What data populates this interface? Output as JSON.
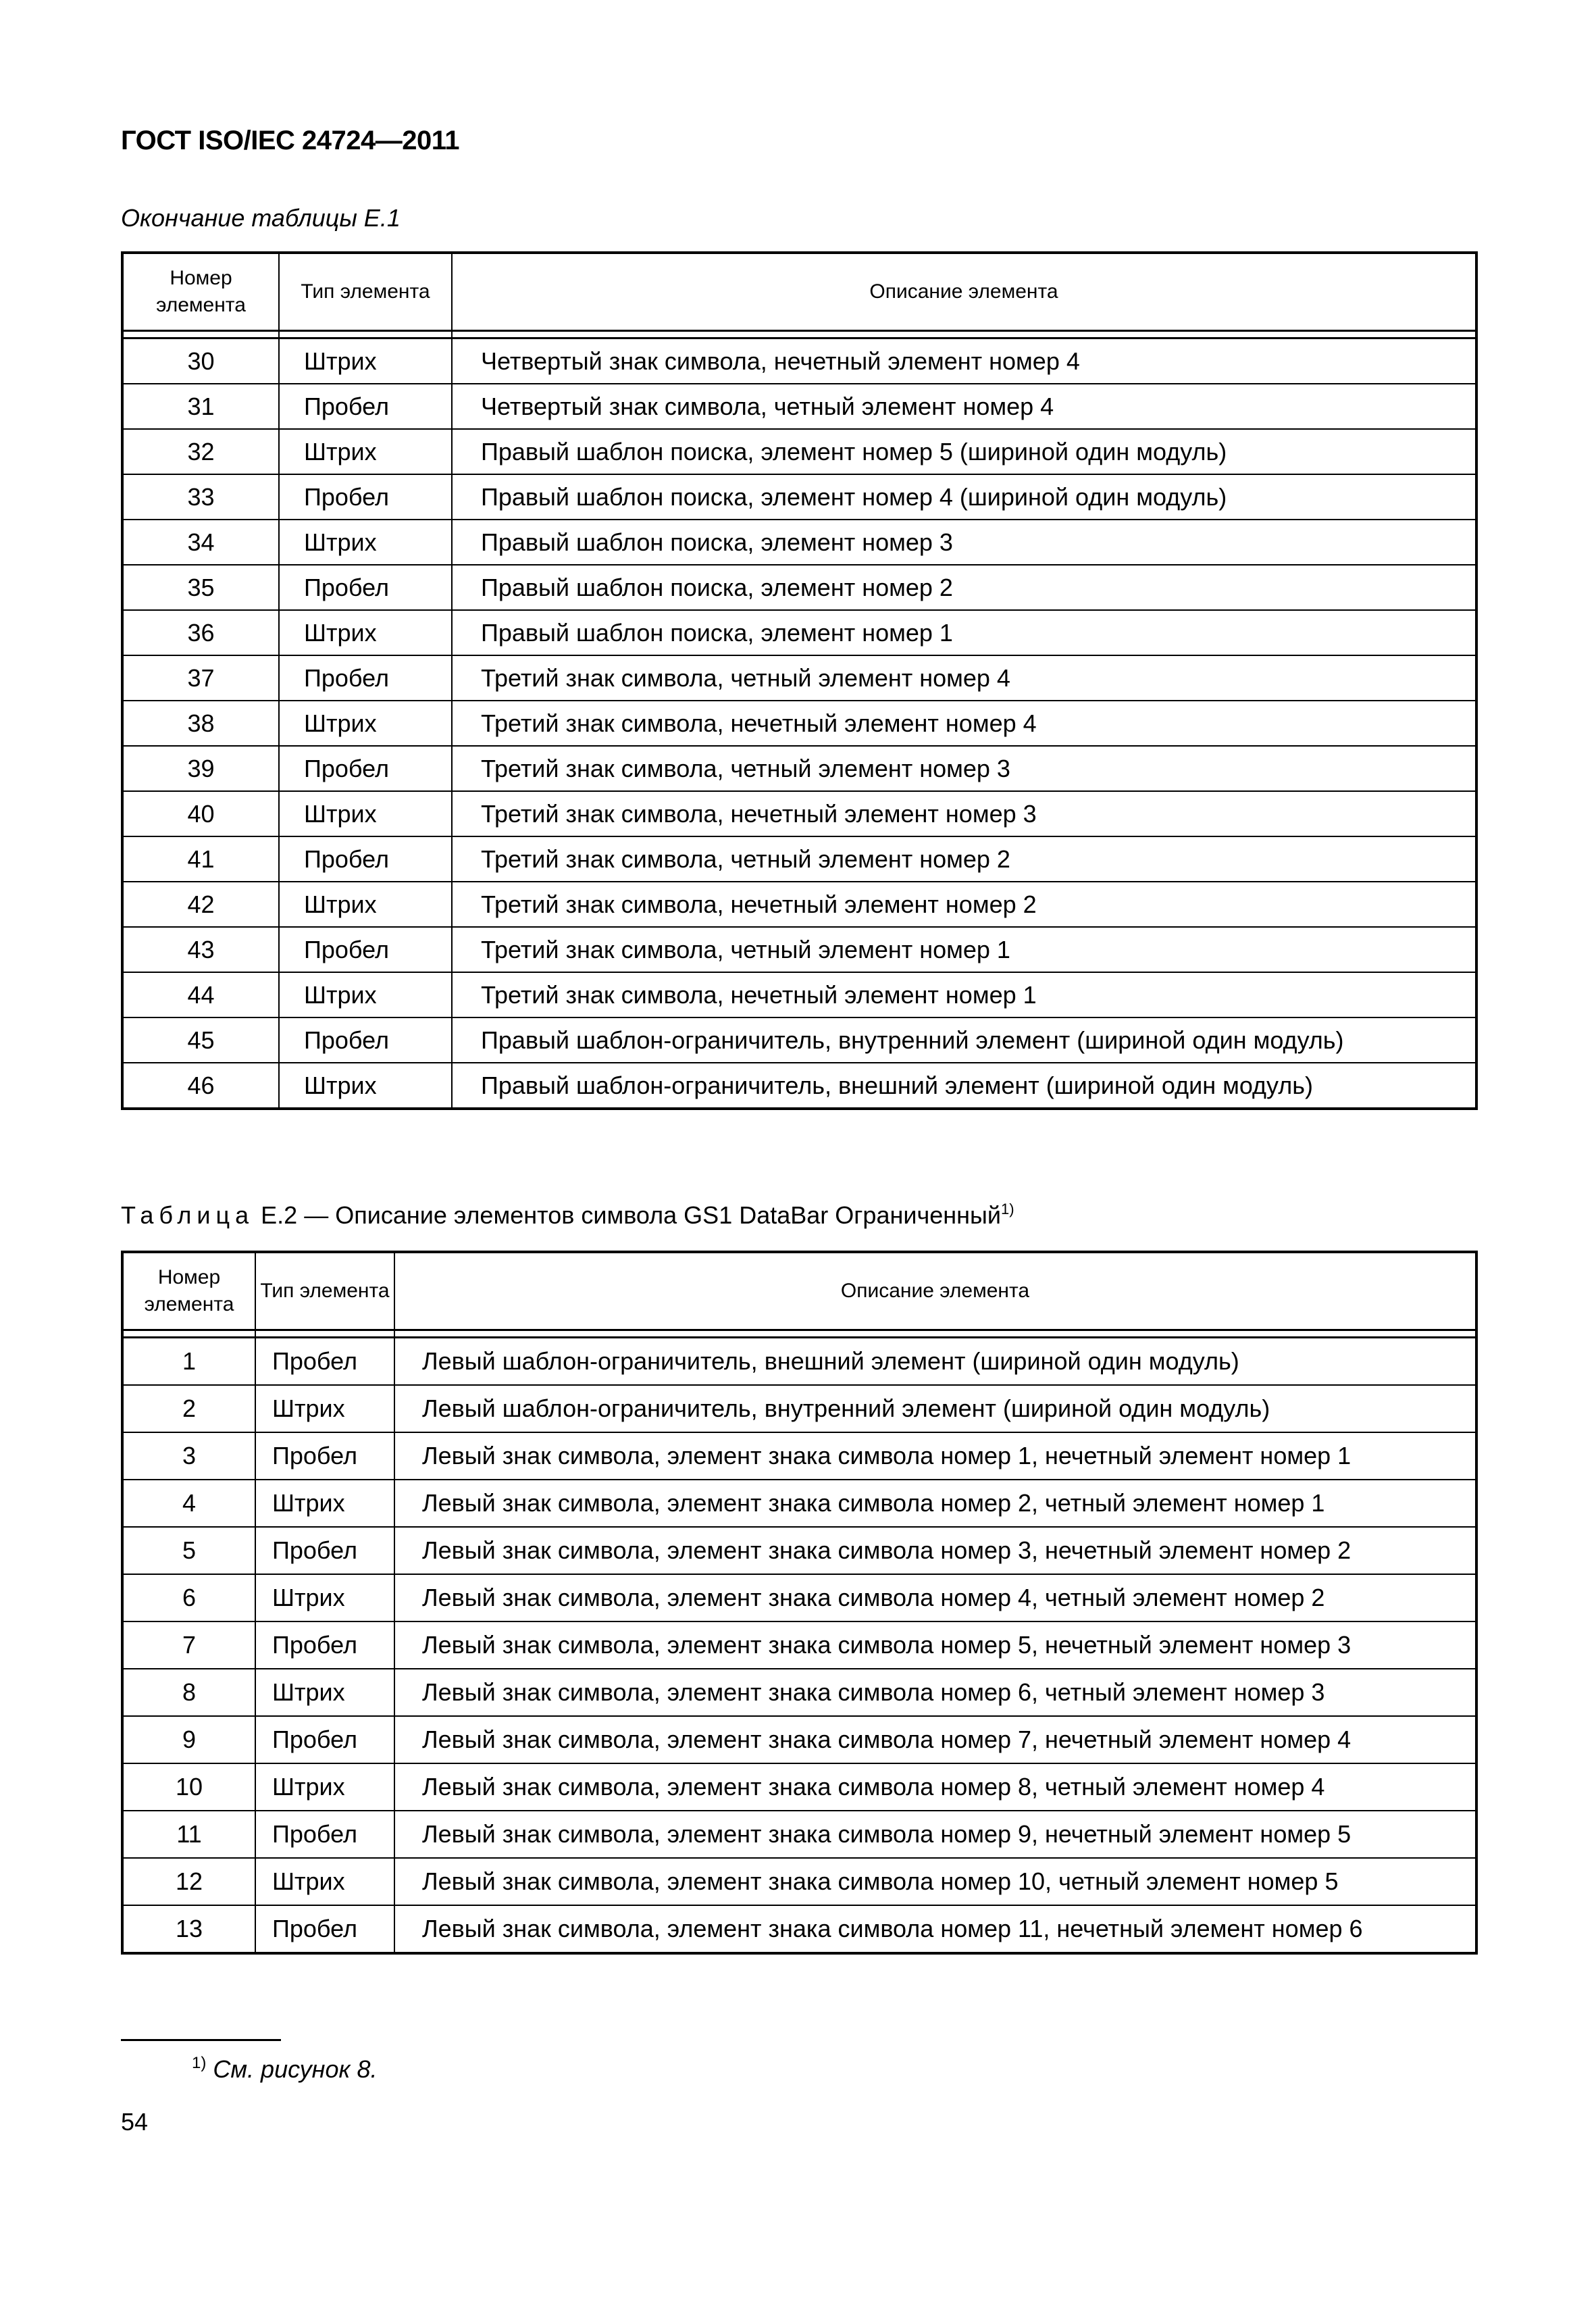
{
  "header": {
    "title": "ГОСТ ISO/IEC 24724—2011"
  },
  "table1": {
    "caption": "Окончание таблицы Е.1",
    "columns": [
      "Номер элемента",
      "Тип элемента",
      "Описание элемента"
    ],
    "rows": [
      [
        "30",
        "Штрих",
        "Четвертый знак символа, нечетный элемент номер 4"
      ],
      [
        "31",
        "Пробел",
        "Четвертый знак символа, четный элемент номер 4"
      ],
      [
        "32",
        "Штрих",
        "Правый шаблон поиска, элемент номер 5 (шириной один модуль)"
      ],
      [
        "33",
        "Пробел",
        "Правый шаблон поиска, элемент номер 4 (шириной один модуль)"
      ],
      [
        "34",
        "Штрих",
        "Правый шаблон поиска, элемент номер 3"
      ],
      [
        "35",
        "Пробел",
        "Правый шаблон поиска, элемент номер 2"
      ],
      [
        "36",
        "Штрих",
        "Правый шаблон поиска, элемент номер 1"
      ],
      [
        "37",
        "Пробел",
        "Третий знак символа, четный элемент номер 4"
      ],
      [
        "38",
        "Штрих",
        "Третий знак символа, нечетный элемент номер 4"
      ],
      [
        "39",
        "Пробел",
        "Третий знак символа, четный элемент номер 3"
      ],
      [
        "40",
        "Штрих",
        "Третий знак символа, нечетный элемент номер 3"
      ],
      [
        "41",
        "Пробел",
        "Третий знак символа, четный элемент номер 2"
      ],
      [
        "42",
        "Штрих",
        "Третий знак символа, нечетный элемент номер 2"
      ],
      [
        "43",
        "Пробел",
        "Третий знак символа, четный элемент номер 1"
      ],
      [
        "44",
        "Штрих",
        "Третий знак символа, нечетный элемент номер 1"
      ],
      [
        "45",
        "Пробел",
        "Правый шаблон-ограничитель, внутренний элемент (шириной один модуль)"
      ],
      [
        "46",
        "Штрих",
        "Правый шаблон-ограничитель, внешний элемент (шириной один модуль)"
      ]
    ]
  },
  "table2": {
    "caption_prefix": "Таблица",
    "caption_text": "Е.2 — Описание элементов символа GS1 DataBar Ограниченный",
    "caption_footnote_mark": "1)",
    "columns": [
      "Номер элемента",
      "Тип элемента",
      "Описание элемента"
    ],
    "rows": [
      [
        "1",
        "Пробел",
        "Левый шаблон-ограничитель, внешний элемент (шириной один модуль)"
      ],
      [
        "2",
        "Штрих",
        "Левый шаблон-ограничитель, внутренний элемент (шириной один модуль)"
      ],
      [
        "3",
        "Пробел",
        "Левый знак символа, элемент  знака символа номер 1, нечетный элемент номер 1"
      ],
      [
        "4",
        "Штрих",
        "Левый знак символа, элемент знака символа номер 2, четный элемент номер 1"
      ],
      [
        "5",
        "Пробел",
        "Левый знак символа, элемент знака символа номер 3, нечетный элемент номер 2"
      ],
      [
        "6",
        "Штрих",
        "Левый знак символа, элемент знака символа номер 4, четный элемент номер 2"
      ],
      [
        "7",
        "Пробел",
        "Левый знак символа, элемент знака символа номер 5, нечетный элемент номер 3"
      ],
      [
        "8",
        "Штрих",
        "Левый знак символа, элемент знака символа номер 6, четный элемент номер 3"
      ],
      [
        "9",
        "Пробел",
        "Левый знак символа, элемент знака символа номер 7, нечетный элемент номер 4"
      ],
      [
        "10",
        "Штрих",
        "Левый знак символа, элемент знака символа номер 8, четный элемент номер 4"
      ],
      [
        "11",
        "Пробел",
        "Левый знак символа, элемент знака символа номер 9, нечетный элемент номер 5"
      ],
      [
        "12",
        "Штрих",
        "Левый знак символа, элемент знака символа номер 10, четный элемент номер 5"
      ],
      [
        "13",
        "Пробел",
        "Левый знак символа, элемент знака символа номер 11, нечетный элемент номер 6"
      ]
    ]
  },
  "footnote": {
    "mark": "1)",
    "text": "См. рисунок 8."
  },
  "page_number": "54"
}
